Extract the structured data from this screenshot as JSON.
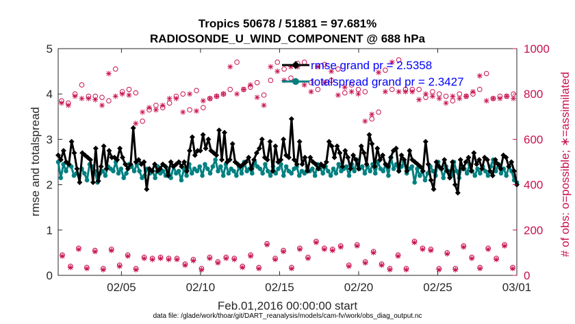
{
  "chart_data": {
    "type": "line",
    "title_line1": "Tropics 50678 / 51881 = 97.681%",
    "title_line2": "RADIOSONDE_U_WIND_COMPONENT @ 688 hPa",
    "ylabel_left": "rmse and totalspread",
    "ylabel_right": "# of obs: o=possible; ∗=assimilated",
    "xlabel": "Feb.01,2016 00:00:00 start",
    "footnote": "data file: /glade/work/thoar/git/DART_reanalysis/models/cam-fv/work/obs_diag_output.nc",
    "ylim_left": [
      0,
      5
    ],
    "ylim_right": [
      0,
      1000
    ],
    "xlim_days": [
      1,
      30
    ],
    "yticks_left": [
      "0",
      "1",
      "2",
      "3",
      "4",
      "5"
    ],
    "yticks_right": [
      "0",
      "200",
      "400",
      "600",
      "800",
      "1000"
    ],
    "xticks": [
      {
        "day": 5,
        "label": "02/05"
      },
      {
        "day": 10,
        "label": "02/10"
      },
      {
        "day": 15,
        "label": "02/15"
      },
      {
        "day": 20,
        "label": "02/20"
      },
      {
        "day": 25,
        "label": "02/25"
      },
      {
        "day": 30,
        "label": "03/01"
      }
    ],
    "legend": [
      {
        "name": "rmse",
        "label": "rmse grand pr = 2.5358",
        "color": "#000000"
      },
      {
        "name": "totalspread",
        "label": "totalspread grand pr = 2.3427",
        "color": "#008080"
      }
    ],
    "colors": {
      "rmse": "#000000",
      "totalspread": "#008080",
      "obs": "#c8104f"
    },
    "series": [
      {
        "name": "rmse",
        "values": [
          2.65,
          2.55,
          2.75,
          2.5,
          2.45,
          2.95,
          2.7,
          2.35,
          2.05,
          2.7,
          2.65,
          2.6,
          2.55,
          2.05,
          2.8,
          2.08,
          2.4,
          2.85,
          2.35,
          2.75,
          2.6,
          2.6,
          2.55,
          2.8,
          2.6,
          2.45,
          2.35,
          2.45,
          3.25,
          2.5,
          2.55,
          2.45,
          2.5,
          1.9,
          2.35,
          2.3,
          2.45,
          2.3,
          2.35,
          2.45,
          2.4,
          2.2,
          2.5,
          2.4,
          2.45,
          2.5,
          2.4,
          2.5,
          2.3,
          2.75,
          3.05,
          2.65,
          2.75,
          2.75,
          3.1,
          2.8,
          3.0,
          2.75,
          2.7,
          2.65,
          3.2,
          2.55,
          3.15,
          2.5,
          2.55,
          2.9,
          2.5,
          2.45,
          2.4,
          2.45,
          2.5,
          2.6,
          2.35,
          2.55,
          2.7,
          2.8,
          3.0,
          2.6,
          2.55,
          2.95,
          2.3,
          2.85,
          2.5,
          2.55,
          3.0,
          2.65,
          2.6,
          3.45,
          2.55,
          2.45,
          2.95,
          2.45,
          2.6,
          2.3,
          2.6,
          2.5,
          2.45,
          2.35,
          2.45,
          2.4,
          2.5,
          2.95,
          2.85,
          2.6,
          2.85,
          2.7,
          2.4,
          2.75,
          2.6,
          2.35,
          2.65,
          2.55,
          2.35,
          2.85,
          2.7,
          2.45,
          3.1,
          2.9,
          2.4,
          2.8,
          2.55,
          2.65,
          2.45,
          2.4,
          2.6,
          2.75,
          2.8,
          2.3,
          2.65,
          2.55,
          2.3,
          2.75,
          2.55,
          2.5,
          2.45,
          2.4,
          2.3,
          2.95,
          2.45,
          2.1,
          1.9,
          2.5,
          2.4,
          2.35,
          2.55,
          2.3,
          2.15,
          2.5,
          2.0,
          1.82,
          2.55,
          2.35,
          2.5,
          2.6,
          2.3,
          2.7,
          2.45,
          2.55,
          2.35,
          2.6,
          2.55,
          2.3,
          2.2,
          2.55,
          2.45,
          2.35,
          2.65,
          2.6,
          2.4,
          2.5,
          2.3,
          2.0
        ]
      },
      {
        "name": "totalspread",
        "values": [
          2.5,
          2.15,
          2.45,
          2.3,
          2.45,
          2.4,
          2.2,
          2.25,
          2.2,
          2.35,
          2.25,
          2.1,
          2.45,
          2.4,
          2.3,
          2.05,
          2.25,
          2.3,
          2.2,
          2.4,
          2.35,
          2.3,
          2.5,
          2.25,
          2.35,
          2.15,
          2.25,
          2.45,
          2.4,
          2.3,
          2.45,
          2.3,
          2.15,
          2.2,
          2.35,
          2.25,
          2.3,
          2.15,
          2.4,
          2.25,
          2.3,
          2.2,
          2.35,
          2.15,
          2.4,
          2.25,
          2.3,
          2.1,
          2.35,
          2.2,
          2.45,
          2.25,
          2.35,
          2.3,
          2.4,
          2.2,
          2.45,
          2.35,
          2.25,
          2.4,
          2.55,
          2.3,
          2.4,
          2.2,
          2.45,
          2.25,
          2.35,
          2.3,
          2.2,
          2.4,
          2.25,
          2.5,
          2.3,
          2.35,
          2.25,
          2.5,
          2.4,
          2.35,
          2.25,
          2.45,
          2.3,
          2.2,
          2.4,
          2.25,
          2.35,
          2.45,
          2.2,
          2.4,
          2.3,
          2.25,
          2.35,
          2.4,
          2.2,
          2.3,
          2.25,
          2.4,
          2.3,
          2.35,
          2.2,
          2.45,
          2.35,
          2.25,
          2.4,
          2.3,
          2.2,
          2.35,
          2.25,
          2.45,
          2.3,
          2.35,
          2.4,
          2.2,
          2.45,
          2.3,
          2.55,
          2.35,
          2.4,
          2.25,
          2.4,
          2.3,
          2.45,
          2.25,
          2.5,
          2.35,
          2.3,
          2.45,
          2.2,
          2.6,
          2.35,
          2.45,
          2.3,
          2.4,
          2.5,
          2.25,
          2.35,
          2.4,
          2.05,
          2.35,
          2.2,
          2.3,
          2.1,
          2.25,
          2.4,
          2.3,
          2.2,
          2.5,
          2.35,
          2.15,
          2.4,
          2.3,
          2.2,
          2.5,
          2.3,
          2.15,
          2.4,
          2.35,
          2.25,
          2.45,
          2.3,
          2.2,
          2.35,
          2.25,
          2.4,
          2.3,
          2.2,
          2.4,
          2.55,
          2.3,
          2.45,
          2.25,
          2.35,
          2.2,
          2.4,
          2.3,
          2.1,
          2.05
        ]
      },
      {
        "name": "obs_possible_high",
        "values": [
          770,
          760,
          800,
          840,
          790,
          790,
          785,
          770,
          910,
          810,
          820,
          805,
          680,
          730,
          750,
          740,
          760,
          790,
          800,
          730,
          815,
          740,
          780,
          790,
          800,
          820,
          940,
          820,
          830,
          850,
          795,
          860,
          940,
          910,
          870,
          935,
          940,
          850,
          820,
          930,
          860,
          910,
          805,
          840,
          820,
          810,
          690,
          720,
          905,
          820,
          950,
          820,
          820,
          820,
          785,
          810,
          800,
          790,
          770,
          800,
          790,
          800,
          820,
          890,
          780,
          790,
          790,
          800
        ]
      },
      {
        "name": "obs_assimilated_high",
        "values": [
          760,
          750,
          790,
          780,
          780,
          775,
          750,
          890,
          790,
          800,
          795,
          670,
          720,
          740,
          730,
          750,
          780,
          780,
          720,
          800,
          725,
          770,
          780,
          790,
          800,
          920,
          800,
          820,
          840,
          785,
          750,
          920,
          900,
          860,
          920,
          920,
          840,
          810,
          920,
          850,
          900,
          795,
          830,
          810,
          800,
          680,
          710,
          895,
          810,
          940,
          810,
          810,
          810,
          775,
          800,
          790,
          780,
          760,
          790,
          780,
          790,
          810,
          880,
          770,
          780,
          780,
          790,
          780
        ]
      },
      {
        "name": "obs_possible_low",
        "values": [
          90,
          40,
          120,
          35,
          110,
          30,
          115,
          45,
          90,
          30,
          80,
          75,
          80,
          75,
          75,
          50,
          70,
          30,
          80,
          60,
          80,
          75,
          40,
          90,
          35,
          140,
          75,
          110,
          35,
          120,
          80,
          150,
          120,
          115,
          130,
          45,
          135,
          60,
          105,
          50,
          30,
          90,
          30,
          150,
          120,
          115,
          30,
          100,
          30,
          130,
          80,
          35,
          120,
          75,
          135,
          35
        ]
      },
      {
        "name": "obs_assimilated_low",
        "values": [
          85,
          35,
          115,
          30,
          105,
          25,
          110,
          40,
          85,
          25,
          75,
          70,
          75,
          70,
          70,
          45,
          65,
          25,
          75,
          55,
          75,
          70,
          35,
          85,
          30,
          135,
          70,
          105,
          30,
          115,
          75,
          145,
          115,
          110,
          125,
          40,
          130,
          55,
          100,
          45,
          25,
          85,
          25,
          145,
          115,
          110,
          25,
          95,
          25,
          125,
          75,
          30,
          115,
          70,
          130,
          30
        ]
      }
    ]
  }
}
